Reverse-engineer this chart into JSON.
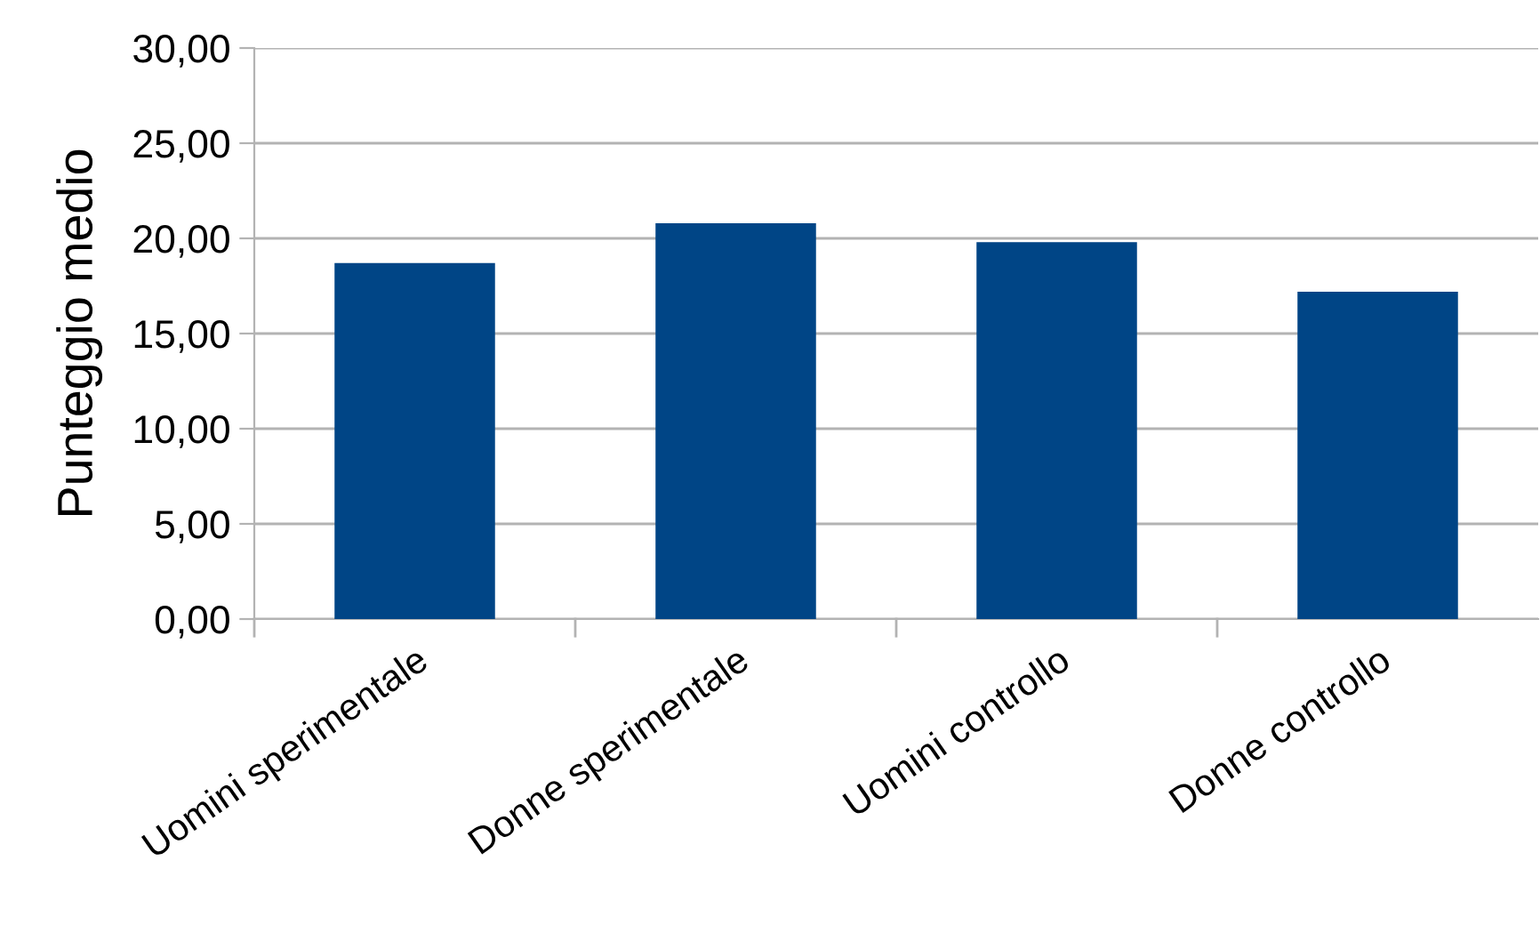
{
  "chart_data": {
    "type": "bar",
    "ylabel": "Punteggio medio",
    "categories": [
      "Uomini sperimentale",
      "Donne sperimentale",
      "Uomini controllo",
      "Donne controllo"
    ],
    "values": [
      18.7,
      20.8,
      19.8,
      17.2
    ],
    "color": "#004586",
    "ylim": [
      0,
      30
    ],
    "yticks": [
      {
        "value": 0,
        "label": "0,00"
      },
      {
        "value": 5,
        "label": "5,00"
      },
      {
        "value": 10,
        "label": "10,00"
      },
      {
        "value": 15,
        "label": "15,00"
      },
      {
        "value": 20,
        "label": "20,00"
      },
      {
        "value": 25,
        "label": "25,00"
      },
      {
        "value": 30,
        "label": "30,00"
      }
    ],
    "grid": "y",
    "legend": false
  }
}
